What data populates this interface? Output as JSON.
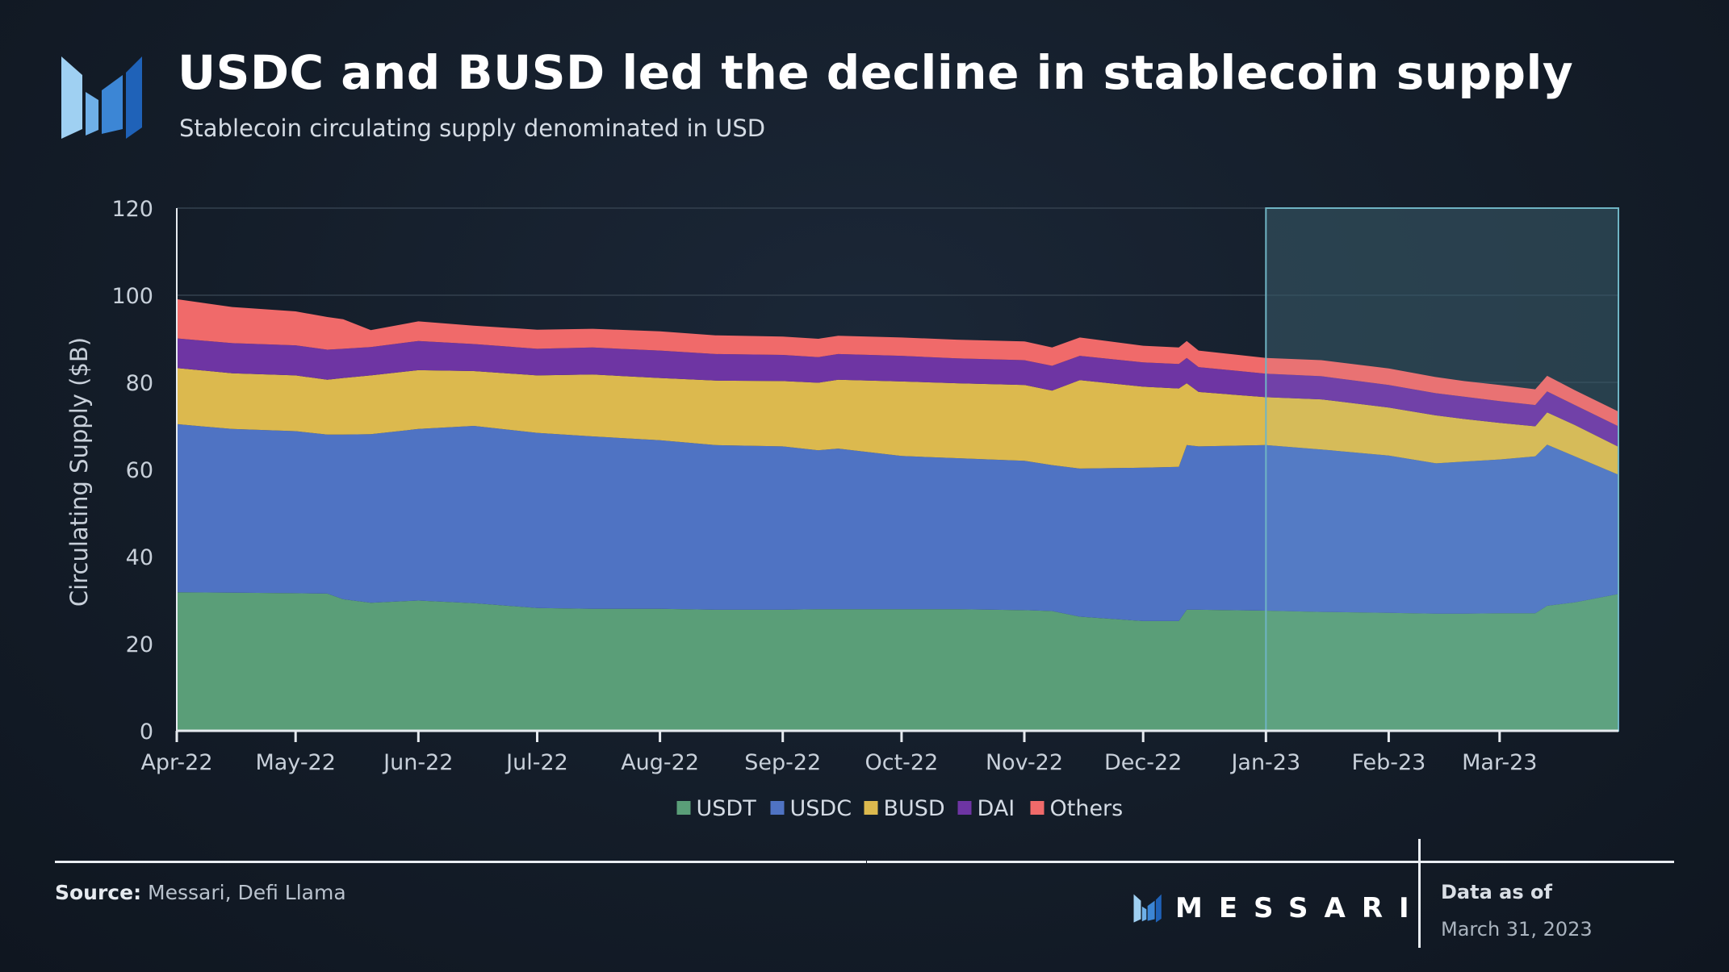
{
  "header": {
    "title": "USDC and BUSD led the decline in stablecoin supply",
    "subtitle": "Stablecoin circulating supply denominated in USD"
  },
  "footer": {
    "source_label": "Source:",
    "source_text": "Messari, Defi Llama",
    "brand": "MESSARI",
    "as_of_label": "Data as of",
    "as_of_date": "March 31, 2023"
  },
  "colors": {
    "USDT": "#5a9e78",
    "USDC": "#4f73c3",
    "BUSD": "#dcb94e",
    "DAI": "#6e35a3",
    "Others": "#f06a6a",
    "highlight": "#2a4756"
  },
  "chart_data": {
    "type": "area",
    "stacked": true,
    "ylabel": "Circulating Supply ($B)",
    "xlabel": "",
    "ylim": [
      0,
      120
    ],
    "yticks": [
      0,
      20,
      40,
      60,
      80,
      100,
      120
    ],
    "grid": true,
    "legend_position": "bottom-center",
    "x_tick_labels": [
      "Apr-22",
      "May-22",
      "Jun-22",
      "Jul-22",
      "Aug-22",
      "Sep-22",
      "Oct-22",
      "Nov-22",
      "Dec-22",
      "Jan-23",
      "Feb-23",
      "Mar-23"
    ],
    "x": [
      "2022-04-01",
      "2022-04-15",
      "2022-05-01",
      "2022-05-09",
      "2022-05-13",
      "2022-05-20",
      "2022-06-01",
      "2022-06-15",
      "2022-07-01",
      "2022-07-15",
      "2022-08-01",
      "2022-08-15",
      "2022-09-01",
      "2022-09-10",
      "2022-09-15",
      "2022-10-01",
      "2022-10-15",
      "2022-11-01",
      "2022-11-08",
      "2022-11-15",
      "2022-12-01",
      "2022-12-10",
      "2022-12-12",
      "2022-12-15",
      "2023-01-01",
      "2023-01-15",
      "2023-02-01",
      "2023-02-13",
      "2023-02-20",
      "2023-03-01",
      "2023-03-10",
      "2023-03-13",
      "2023-03-20",
      "2023-03-31"
    ],
    "series": [
      {
        "name": "USDT",
        "values": [
          31.8,
          31.7,
          31.6,
          31.5,
          30.2,
          29.4,
          29.9,
          29.3,
          28.2,
          28.0,
          28.0,
          27.8,
          27.8,
          27.9,
          27.9,
          27.9,
          27.9,
          27.7,
          27.5,
          26.2,
          25.2,
          25.2,
          27.8,
          27.8,
          27.6,
          27.3,
          27.1,
          26.9,
          26.9,
          27.0,
          27.0,
          28.7,
          29.5,
          31.4
        ]
      },
      {
        "name": "USDC",
        "values": [
          38.6,
          37.6,
          37.2,
          36.5,
          37.8,
          38.7,
          39.4,
          40.7,
          40.2,
          39.6,
          38.7,
          37.8,
          37.5,
          36.5,
          36.9,
          35.2,
          34.7,
          34.3,
          33.5,
          34.0,
          35.2,
          35.4,
          37.8,
          37.5,
          38.0,
          37.3,
          36.1,
          34.5,
          34.9,
          35.3,
          36.0,
          37.0,
          33.5,
          27.4
        ]
      },
      {
        "name": "BUSD",
        "values": [
          12.9,
          12.8,
          12.8,
          12.6,
          13.0,
          13.5,
          13.5,
          12.6,
          13.2,
          14.2,
          14.3,
          14.8,
          15.0,
          15.5,
          15.8,
          17.1,
          17.2,
          17.4,
          17.1,
          20.3,
          18.6,
          18.0,
          14.2,
          12.5,
          11.0,
          11.5,
          11.0,
          11.0,
          9.8,
          8.4,
          6.9,
          7.4,
          7.2,
          6.4
        ]
      },
      {
        "name": "DAI",
        "values": [
          6.8,
          6.9,
          6.9,
          6.9,
          6.7,
          6.5,
          6.7,
          6.2,
          6.1,
          6.2,
          6.3,
          6.1,
          6.0,
          5.9,
          5.9,
          5.9,
          5.7,
          5.7,
          5.7,
          5.6,
          5.6,
          5.6,
          5.8,
          5.7,
          5.4,
          5.3,
          5.2,
          5.1,
          5.1,
          5.0,
          4.9,
          4.8,
          4.6,
          4.7
        ]
      },
      {
        "name": "Others",
        "values": [
          9.0,
          8.3,
          7.8,
          7.5,
          6.8,
          3.9,
          4.5,
          4.2,
          4.4,
          4.3,
          4.4,
          4.3,
          4.2,
          4.2,
          4.2,
          4.2,
          4.3,
          4.3,
          4.2,
          4.2,
          3.8,
          3.8,
          3.9,
          3.8,
          3.6,
          3.7,
          3.8,
          3.7,
          3.6,
          3.7,
          3.6,
          3.6,
          3.4,
          3.4
        ]
      }
    ]
  }
}
